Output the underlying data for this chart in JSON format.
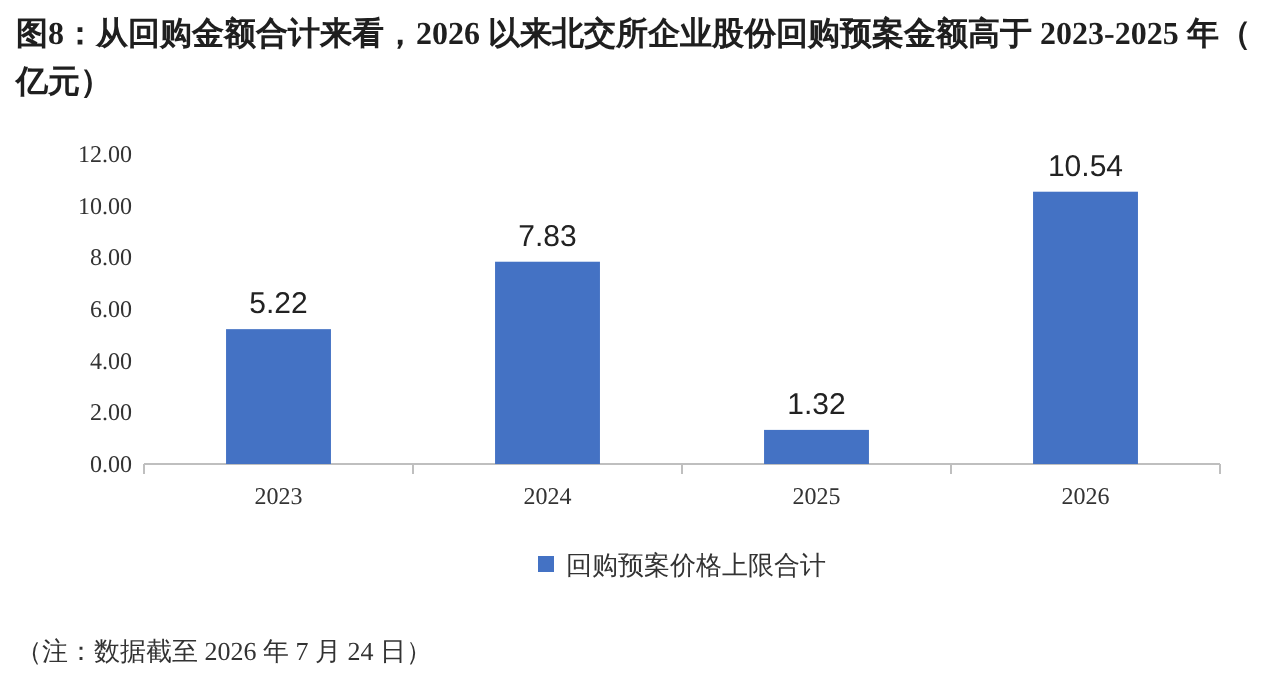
{
  "chart_data": {
    "type": "bar",
    "title": "图8：从回购金额合计来看，2026 以来北交所企业股份回购预案金额高于 2023-2025 年（亿元）",
    "categories": [
      "2023",
      "2024",
      "2025",
      "2026"
    ],
    "series": [
      {
        "name": "回购预案价格上限合计",
        "color": "#4472c4",
        "values": [
          5.22,
          7.83,
          1.32,
          10.54
        ]
      }
    ],
    "ylim": [
      0,
      12
    ],
    "yticks": [
      {
        "value": 0,
        "label": "0.00"
      },
      {
        "value": 2,
        "label": "2.00"
      },
      {
        "value": 4,
        "label": "4.00"
      },
      {
        "value": 6,
        "label": "6.00"
      },
      {
        "value": 8,
        "label": "8.00"
      },
      {
        "value": 10,
        "label": "10.00"
      },
      {
        "value": 12,
        "label": "12.00"
      }
    ],
    "data_labels": true,
    "legend": "bottom",
    "annotations": [
      "（注：数据截至 2026 年 7 月 24 日）"
    ]
  }
}
